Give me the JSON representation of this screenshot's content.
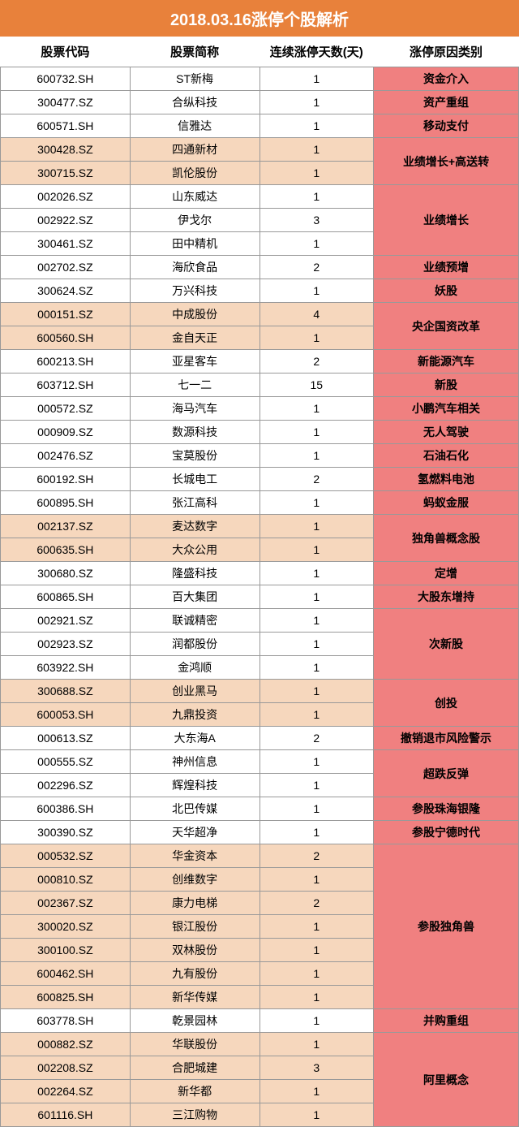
{
  "title": "2018.03.16涨停个股解析",
  "headers": [
    "股票代码",
    "股票简称",
    "连续涨停天数(天)",
    "涨停原因类别"
  ],
  "rows": [
    {
      "code": "600732.SH",
      "name": "ST新梅",
      "days": "1",
      "shade": false
    },
    {
      "code": "300477.SZ",
      "name": "合纵科技",
      "days": "1",
      "shade": false
    },
    {
      "code": "600571.SH",
      "name": "信雅达",
      "days": "1",
      "shade": false
    },
    {
      "code": "300428.SZ",
      "name": "四通新材",
      "days": "1",
      "shade": true
    },
    {
      "code": "300715.SZ",
      "name": "凯伦股份",
      "days": "1",
      "shade": true
    },
    {
      "code": "002026.SZ",
      "name": "山东威达",
      "days": "1",
      "shade": false
    },
    {
      "code": "002922.SZ",
      "name": "伊戈尔",
      "days": "3",
      "shade": false
    },
    {
      "code": "300461.SZ",
      "name": "田中精机",
      "days": "1",
      "shade": false
    },
    {
      "code": "002702.SZ",
      "name": "海欣食品",
      "days": "2",
      "shade": false
    },
    {
      "code": "300624.SZ",
      "name": "万兴科技",
      "days": "1",
      "shade": false
    },
    {
      "code": "000151.SZ",
      "name": "中成股份",
      "days": "4",
      "shade": true
    },
    {
      "code": "600560.SH",
      "name": "金自天正",
      "days": "1",
      "shade": true
    },
    {
      "code": "600213.SH",
      "name": "亚星客车",
      "days": "2",
      "shade": false
    },
    {
      "code": "603712.SH",
      "name": "七一二",
      "days": "15",
      "shade": false
    },
    {
      "code": "000572.SZ",
      "name": "海马汽车",
      "days": "1",
      "shade": false
    },
    {
      "code": "000909.SZ",
      "name": "数源科技",
      "days": "1",
      "shade": false
    },
    {
      "code": "002476.SZ",
      "name": "宝莫股份",
      "days": "1",
      "shade": false
    },
    {
      "code": "600192.SH",
      "name": "长城电工",
      "days": "2",
      "shade": false
    },
    {
      "code": "600895.SH",
      "name": "张江高科",
      "days": "1",
      "shade": false
    },
    {
      "code": "002137.SZ",
      "name": "麦达数字",
      "days": "1",
      "shade": true
    },
    {
      "code": "600635.SH",
      "name": "大众公用",
      "days": "1",
      "shade": true
    },
    {
      "code": "300680.SZ",
      "name": "隆盛科技",
      "days": "1",
      "shade": false
    },
    {
      "code": "600865.SH",
      "name": "百大集团",
      "days": "1",
      "shade": false
    },
    {
      "code": "002921.SZ",
      "name": "联诚精密",
      "days": "1",
      "shade": false
    },
    {
      "code": "002923.SZ",
      "name": "润都股份",
      "days": "1",
      "shade": false
    },
    {
      "code": "603922.SH",
      "name": "金鸿顺",
      "days": "1",
      "shade": false
    },
    {
      "code": "300688.SZ",
      "name": "创业黑马",
      "days": "1",
      "shade": true
    },
    {
      "code": "600053.SH",
      "name": "九鼎投资",
      "days": "1",
      "shade": true
    },
    {
      "code": "000613.SZ",
      "name": "大东海A",
      "days": "2",
      "shade": false
    },
    {
      "code": "000555.SZ",
      "name": "神州信息",
      "days": "1",
      "shade": false
    },
    {
      "code": "002296.SZ",
      "name": "辉煌科技",
      "days": "1",
      "shade": false
    },
    {
      "code": "600386.SH",
      "name": "北巴传媒",
      "days": "1",
      "shade": false
    },
    {
      "code": "300390.SZ",
      "name": "天华超净",
      "days": "1",
      "shade": false
    },
    {
      "code": "000532.SZ",
      "name": "华金资本",
      "days": "2",
      "shade": true
    },
    {
      "code": "000810.SZ",
      "name": "创维数字",
      "days": "1",
      "shade": true
    },
    {
      "code": "002367.SZ",
      "name": "康力电梯",
      "days": "2",
      "shade": true
    },
    {
      "code": "300020.SZ",
      "name": "银江股份",
      "days": "1",
      "shade": true
    },
    {
      "code": "300100.SZ",
      "name": "双林股份",
      "days": "1",
      "shade": true
    },
    {
      "code": "600462.SH",
      "name": "九有股份",
      "days": "1",
      "shade": true
    },
    {
      "code": "600825.SH",
      "name": "新华传媒",
      "days": "1",
      "shade": true
    },
    {
      "code": "603778.SH",
      "name": "乾景园林",
      "days": "1",
      "shade": false
    },
    {
      "code": "000882.SZ",
      "name": "华联股份",
      "days": "1",
      "shade": true
    },
    {
      "code": "002208.SZ",
      "name": "合肥城建",
      "days": "3",
      "shade": true
    },
    {
      "code": "002264.SZ",
      "name": "新华都",
      "days": "1",
      "shade": true
    },
    {
      "code": "601116.SH",
      "name": "三江购物",
      "days": "1",
      "shade": true
    }
  ],
  "reasons": [
    {
      "start": 0,
      "span": 1,
      "text": "资金介入"
    },
    {
      "start": 1,
      "span": 1,
      "text": "资产重组"
    },
    {
      "start": 2,
      "span": 1,
      "text": "移动支付"
    },
    {
      "start": 3,
      "span": 2,
      "text": "业绩增长+高送转"
    },
    {
      "start": 5,
      "span": 3,
      "text": "业绩增长"
    },
    {
      "start": 8,
      "span": 1,
      "text": "业绩预增"
    },
    {
      "start": 9,
      "span": 1,
      "text": "妖股"
    },
    {
      "start": 10,
      "span": 2,
      "text": "央企国资改革"
    },
    {
      "start": 12,
      "span": 1,
      "text": "新能源汽车"
    },
    {
      "start": 13,
      "span": 1,
      "text": "新股"
    },
    {
      "start": 14,
      "span": 1,
      "text": "小鹏汽车相关"
    },
    {
      "start": 15,
      "span": 1,
      "text": "无人驾驶"
    },
    {
      "start": 16,
      "span": 1,
      "text": "石油石化"
    },
    {
      "start": 17,
      "span": 1,
      "text": "氢燃料电池"
    },
    {
      "start": 18,
      "span": 1,
      "text": "蚂蚁金服"
    },
    {
      "start": 19,
      "span": 2,
      "text": "独角兽概念股"
    },
    {
      "start": 21,
      "span": 1,
      "text": "定增"
    },
    {
      "start": 22,
      "span": 1,
      "text": "大股东增持"
    },
    {
      "start": 23,
      "span": 3,
      "text": "次新股"
    },
    {
      "start": 26,
      "span": 2,
      "text": "创投"
    },
    {
      "start": 28,
      "span": 1,
      "text": "撤销退市风险警示"
    },
    {
      "start": 29,
      "span": 2,
      "text": "超跌反弹"
    },
    {
      "start": 31,
      "span": 1,
      "text": "参股珠海银隆"
    },
    {
      "start": 32,
      "span": 1,
      "text": "参股宁德时代"
    },
    {
      "start": 33,
      "span": 7,
      "text": "参股独角兽"
    },
    {
      "start": 40,
      "span": 1,
      "text": "并购重组"
    },
    {
      "start": 41,
      "span": 4,
      "text": "阿里概念"
    }
  ]
}
